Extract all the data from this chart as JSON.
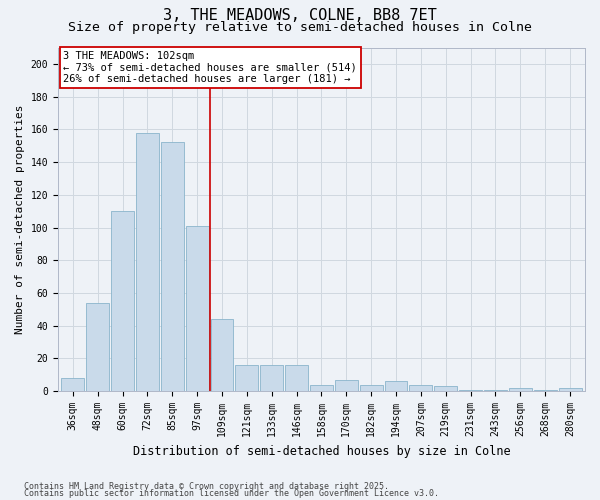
{
  "title": "3, THE MEADOWS, COLNE, BB8 7ET",
  "subtitle": "Size of property relative to semi-detached houses in Colne",
  "xlabel": "Distribution of semi-detached houses by size in Colne",
  "ylabel": "Number of semi-detached properties",
  "categories": [
    "36sqm",
    "48sqm",
    "60sqm",
    "72sqm",
    "85sqm",
    "97sqm",
    "109sqm",
    "121sqm",
    "133sqm",
    "146sqm",
    "158sqm",
    "170sqm",
    "182sqm",
    "194sqm",
    "207sqm",
    "219sqm",
    "231sqm",
    "243sqm",
    "256sqm",
    "268sqm",
    "280sqm"
  ],
  "values": [
    8,
    54,
    110,
    158,
    152,
    101,
    44,
    16,
    16,
    16,
    4,
    7,
    4,
    6,
    4,
    3,
    1,
    1,
    2,
    1,
    2
  ],
  "bar_color": "#c9daea",
  "bar_edge_color": "#8ab4cc",
  "grid_color": "#d0d8e0",
  "bg_color": "#eef2f7",
  "vline_x": 5.5,
  "vline_color": "#cc0000",
  "annotation_title": "3 THE MEADOWS: 102sqm",
  "annotation_line1": "← 73% of semi-detached houses are smaller (514)",
  "annotation_line2": "26% of semi-detached houses are larger (181) →",
  "annotation_box_color": "#cc0000",
  "ylim": [
    0,
    210
  ],
  "yticks": [
    0,
    20,
    40,
    60,
    80,
    100,
    120,
    140,
    160,
    180,
    200
  ],
  "footnote1": "Contains HM Land Registry data © Crown copyright and database right 2025.",
  "footnote2": "Contains public sector information licensed under the Open Government Licence v3.0.",
  "title_fontsize": 11,
  "subtitle_fontsize": 9.5,
  "ylabel_fontsize": 8,
  "xlabel_fontsize": 8.5,
  "tick_fontsize": 7,
  "annotation_fontsize": 7.5,
  "footnote_fontsize": 6
}
